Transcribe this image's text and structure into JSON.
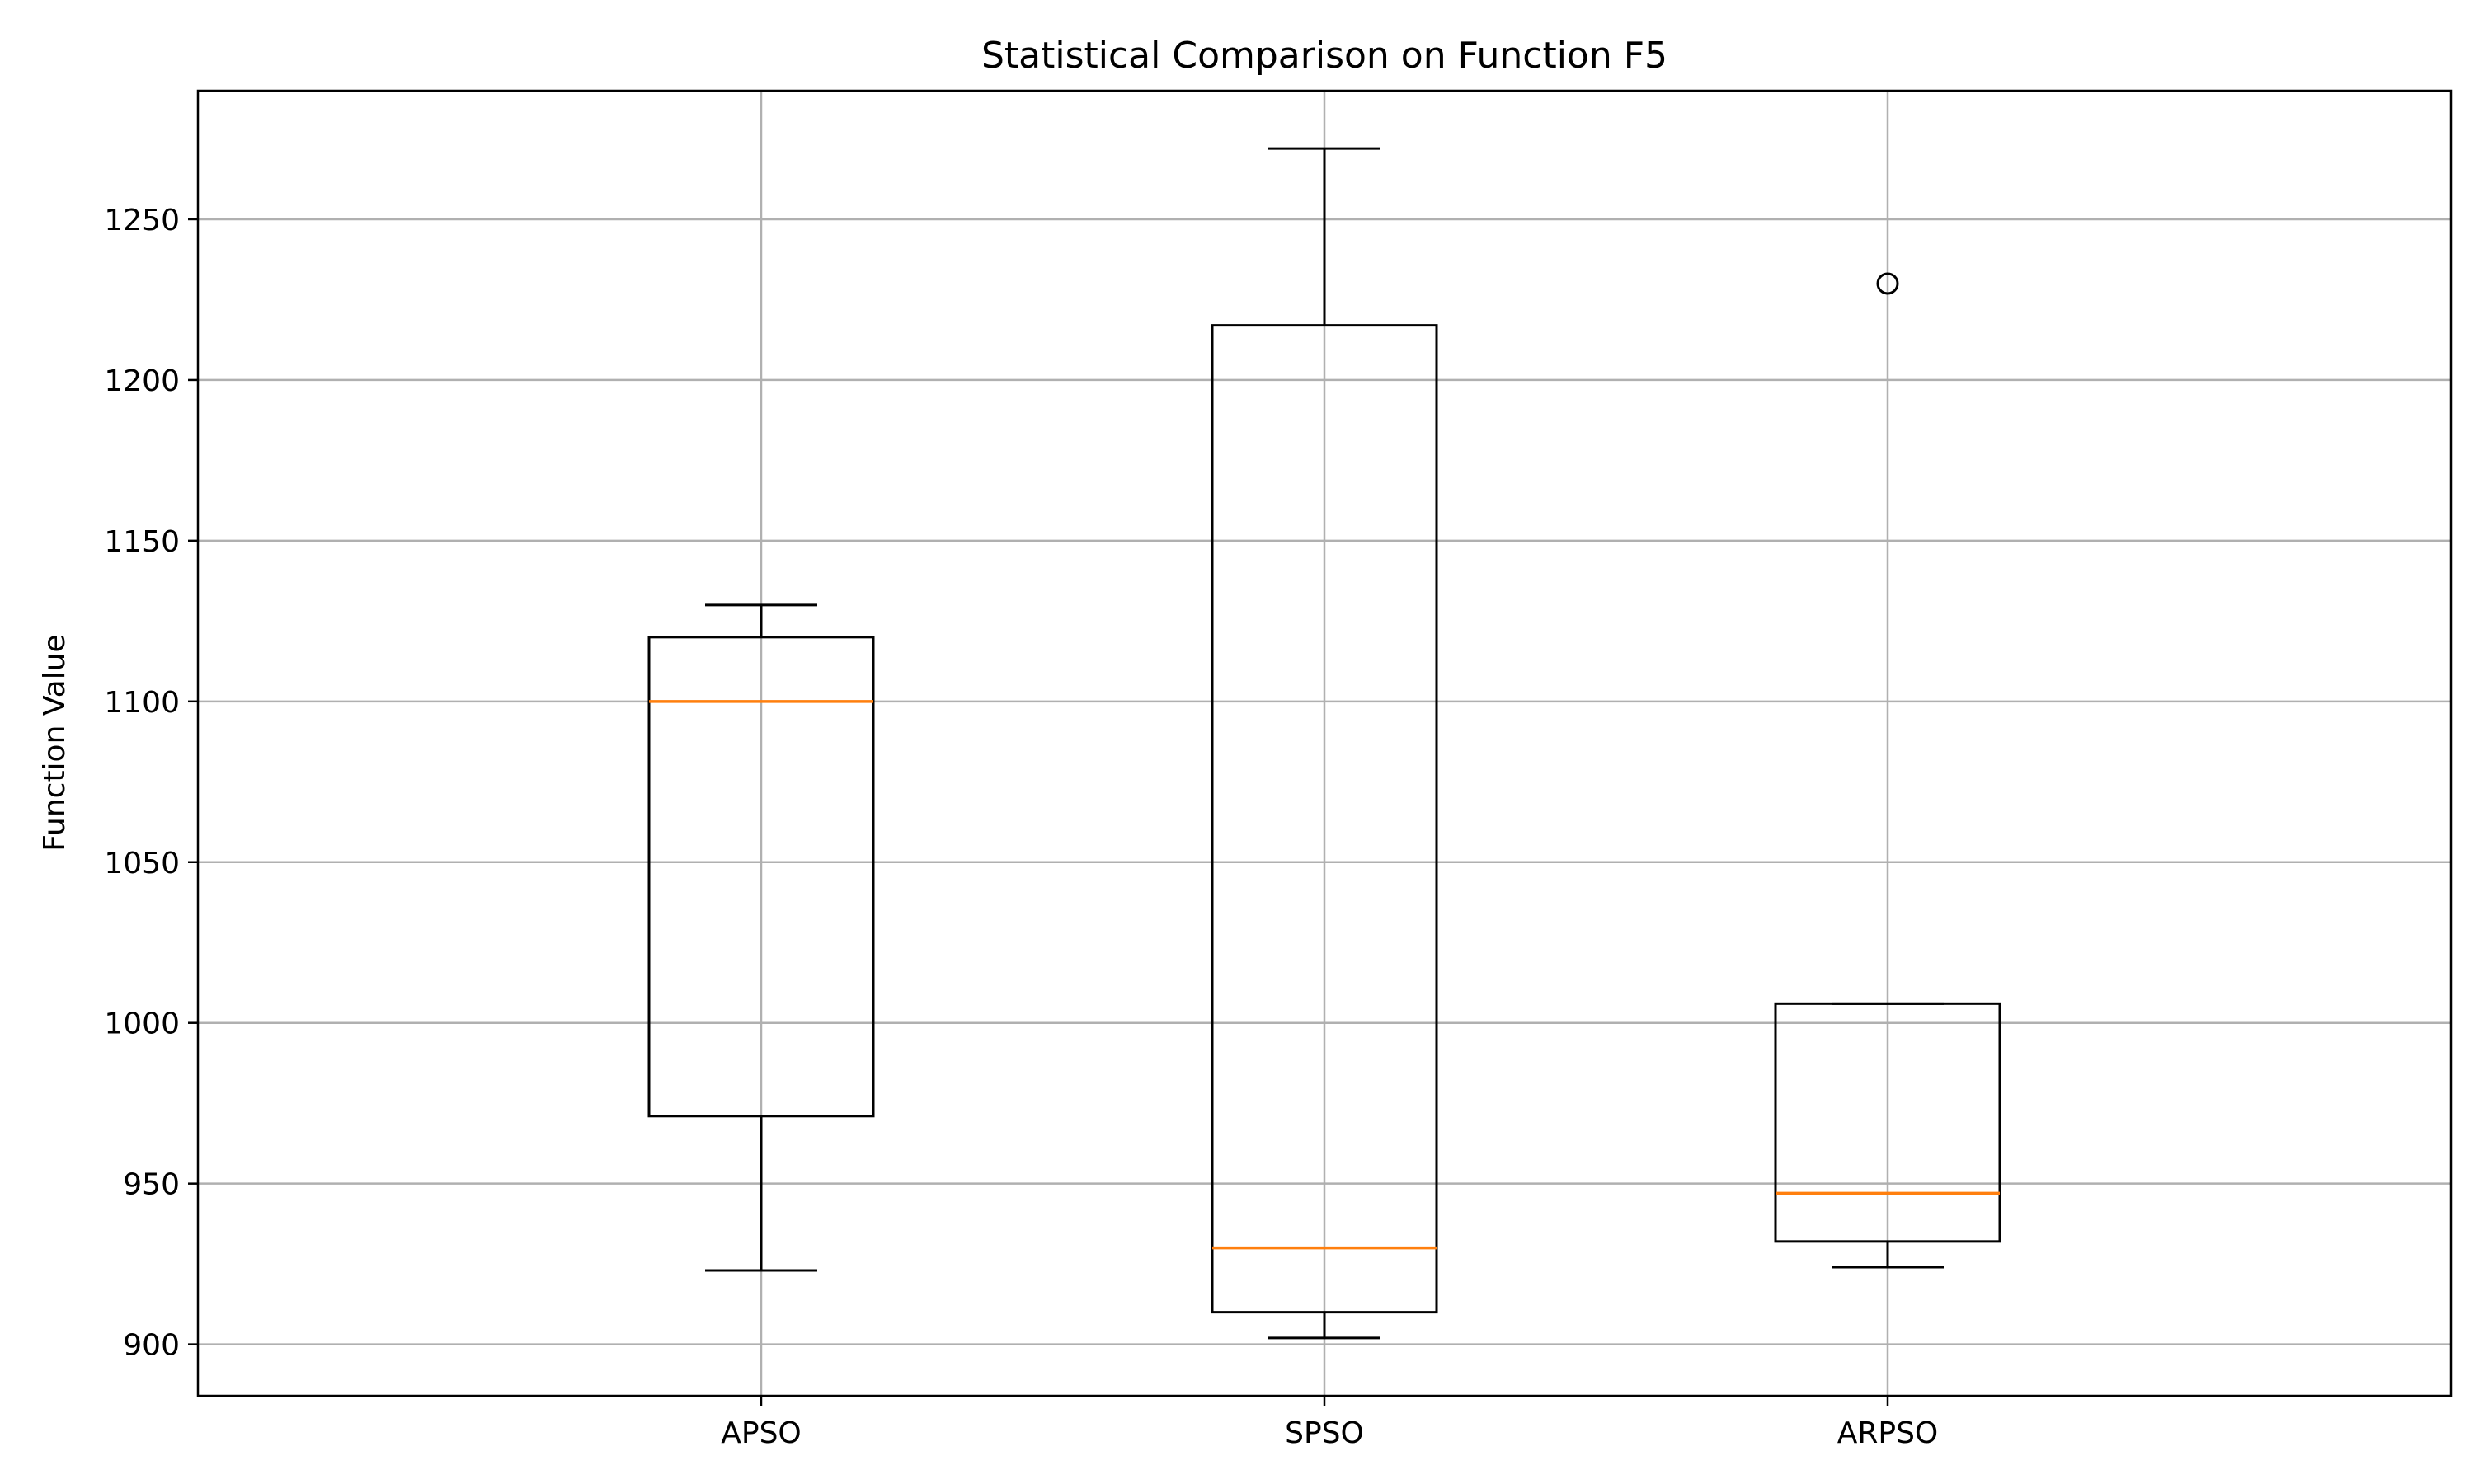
{
  "chart_data": {
    "type": "boxplot",
    "title": "Statistical Comparison on Function F5",
    "xlabel": "",
    "ylabel": "Function Value",
    "ylim": [
      884,
      1290
    ],
    "yticks": [
      900,
      950,
      1000,
      1050,
      1100,
      1150,
      1200,
      1250
    ],
    "grid": true,
    "categories": [
      "APSO",
      "SPSO",
      "ARPSO"
    ],
    "boxes": [
      {
        "category": "APSO",
        "whisker_low": 923,
        "q1": 971,
        "median": 1100,
        "q3": 1120,
        "whisker_high": 1130,
        "outliers": []
      },
      {
        "category": "SPSO",
        "whisker_low": 902,
        "q1": 910,
        "median": 930,
        "q3": 1217,
        "whisker_high": 1272,
        "outliers": []
      },
      {
        "category": "ARPSO",
        "whisker_low": 924,
        "q1": 932,
        "median": 947,
        "q3": 1006,
        "whisker_high": 1006,
        "outliers": [
          1230
        ]
      }
    ],
    "colors": {
      "box": "#000000",
      "median": "#ff7f0e",
      "grid": "#b0b0b0"
    }
  }
}
